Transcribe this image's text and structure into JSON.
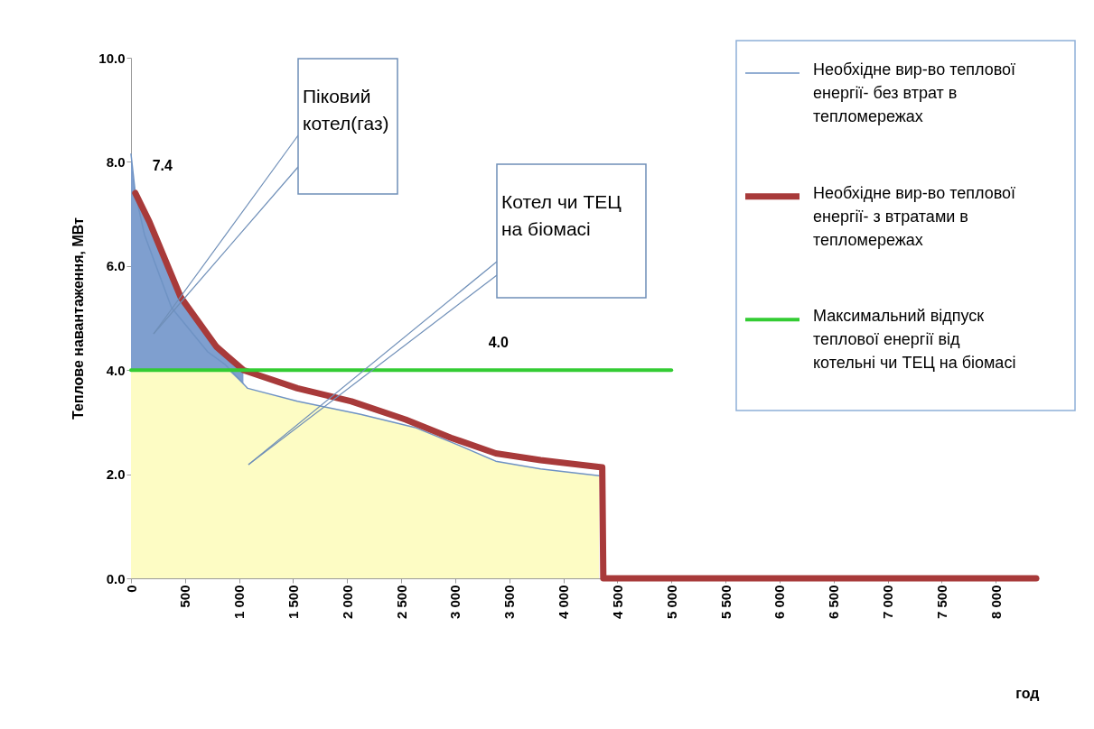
{
  "chart_data": {
    "type": "line",
    "ylabel": "Теплове навантаження, МВт",
    "xlabel": "год",
    "xlim": [
      0,
      8400
    ],
    "ylim": [
      0,
      10
    ],
    "xticks": [
      0,
      500,
      {
        "value": 1000,
        "label": "1 000"
      },
      {
        "value": 1500,
        "label": "1 500"
      },
      {
        "value": 2000,
        "label": "2 000"
      },
      {
        "value": 2500,
        "label": "2 500"
      },
      {
        "value": 3000,
        "label": "3 000"
      },
      {
        "value": 3500,
        "label": "3 500"
      },
      {
        "value": 4000,
        "label": "4 000"
      },
      {
        "value": 4500,
        "label": "4 500"
      },
      {
        "value": 5000,
        "label": "5 000"
      },
      {
        "value": 5500,
        "label": "5 500"
      },
      {
        "value": 6000,
        "label": "6 000"
      },
      {
        "value": 6500,
        "label": "6 500"
      },
      {
        "value": 7000,
        "label": "7 000"
      },
      {
        "value": 7500,
        "label": "7 500"
      },
      {
        "value": 8000,
        "label": "8 000"
      }
    ],
    "yticks": [
      {
        "value": 0,
        "label": "0.0"
      },
      {
        "value": 2,
        "label": "2.0"
      },
      {
        "value": 4,
        "label": "4.0"
      },
      {
        "value": 6,
        "label": "6.0"
      },
      {
        "value": 8,
        "label": "8.0"
      },
      {
        "value": 10,
        "label": "10.0"
      }
    ],
    "grid": false,
    "legend": "top right",
    "series": [
      {
        "type": "area",
        "color": "#7f9fcf",
        "x": [
          0,
          40,
          170,
          460,
          790,
          1040
        ],
        "values": [
          8.1,
          7.4,
          6.85,
          5.4,
          4.45,
          4.0
        ]
      },
      {
        "type": "area",
        "color": "#fdfcc4",
        "x": [
          0,
          900,
          1080,
          1540,
          2125,
          2625,
          3040,
          3375,
          3790,
          4330
        ],
        "values": [
          4.0,
          4.0,
          3.65,
          3.4,
          3.15,
          2.9,
          2.55,
          2.25,
          2.1,
          1.97
        ]
      },
      {
        "name": "Необхідне вир-во теплової енергії- без втрат в тепломережах",
        "color": "#6f93c4",
        "x": [
          0,
          40,
          125,
          375,
          710,
          875,
          1080,
          1540,
          2125,
          2625,
          3040,
          3375,
          3790,
          4330
        ],
        "values": [
          8.15,
          7.4,
          6.6,
          5.2,
          4.35,
          4.1,
          3.65,
          3.4,
          3.15,
          2.9,
          2.55,
          2.25,
          2.1,
          1.97
        ]
      },
      {
        "name": "Необхідне вир-во теплової енергії- з втратами в тепломережах",
        "color": "#a83a3a",
        "x": [
          40,
          170,
          460,
          790,
          1040,
          1540,
          2040,
          2540,
          2960,
          3375,
          3790,
          4360,
          4370,
          8375
        ],
        "values": [
          7.4,
          6.85,
          5.4,
          4.45,
          4.0,
          3.65,
          3.4,
          3.05,
          2.7,
          2.4,
          2.27,
          2.13,
          0,
          0
        ]
      },
      {
        "name": "Максимальний відпуск теплової енергії від котельні чи ТЕЦ на біомасі",
        "color": "#33cc33",
        "x": [
          0,
          5000
        ],
        "values": [
          4.0,
          4.0
        ]
      }
    ],
    "annotations": [
      {
        "text": "7.4",
        "x": 40,
        "y": 7.4
      },
      {
        "text": "4.0",
        "x": 3400,
        "y": 4.0
      },
      "Піковий котел(газ)",
      "Котел чи ТЕЦ на біомасі"
    ]
  }
}
